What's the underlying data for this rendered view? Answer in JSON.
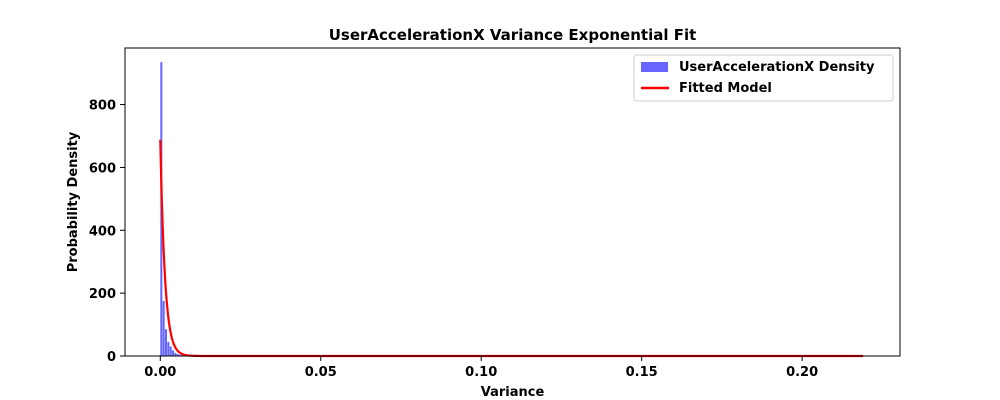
{
  "chart_data": {
    "type": "bar",
    "title": "UserAccelerationX Variance Exponential Fit",
    "xlabel": "Variance",
    "ylabel": "Probability Density",
    "xlim": [
      -0.011,
      0.2305
    ],
    "ylim": [
      0,
      980
    ],
    "xticks": [
      0.0,
      0.05,
      0.1,
      0.15,
      0.2
    ],
    "xtick_labels": [
      "0.00",
      "0.05",
      "0.10",
      "0.15",
      "0.20"
    ],
    "yticks": [
      0,
      200,
      400,
      600,
      800
    ],
    "yticks_labels": [
      "0",
      "200",
      "400",
      "600",
      "800"
    ],
    "grid": false,
    "legend_position": "top-right",
    "series": [
      {
        "name": "UserAccelerationX Density",
        "kind": "histogram",
        "color": "#6666ff",
        "bin_width": 0.00073,
        "bin_start": 0.0,
        "values": [
          935,
          175,
          85,
          45,
          30,
          18,
          10,
          6,
          4,
          3,
          2,
          2,
          1.5,
          1.2,
          1,
          0.8,
          0.6,
          0.5,
          0.4,
          0.3
        ]
      },
      {
        "name": "Fitted Model",
        "kind": "line",
        "color": "#ff0000",
        "model": "exponential",
        "amplitude": 688,
        "rate": 688,
        "x_range": [
          0.0,
          0.219
        ]
      }
    ]
  }
}
